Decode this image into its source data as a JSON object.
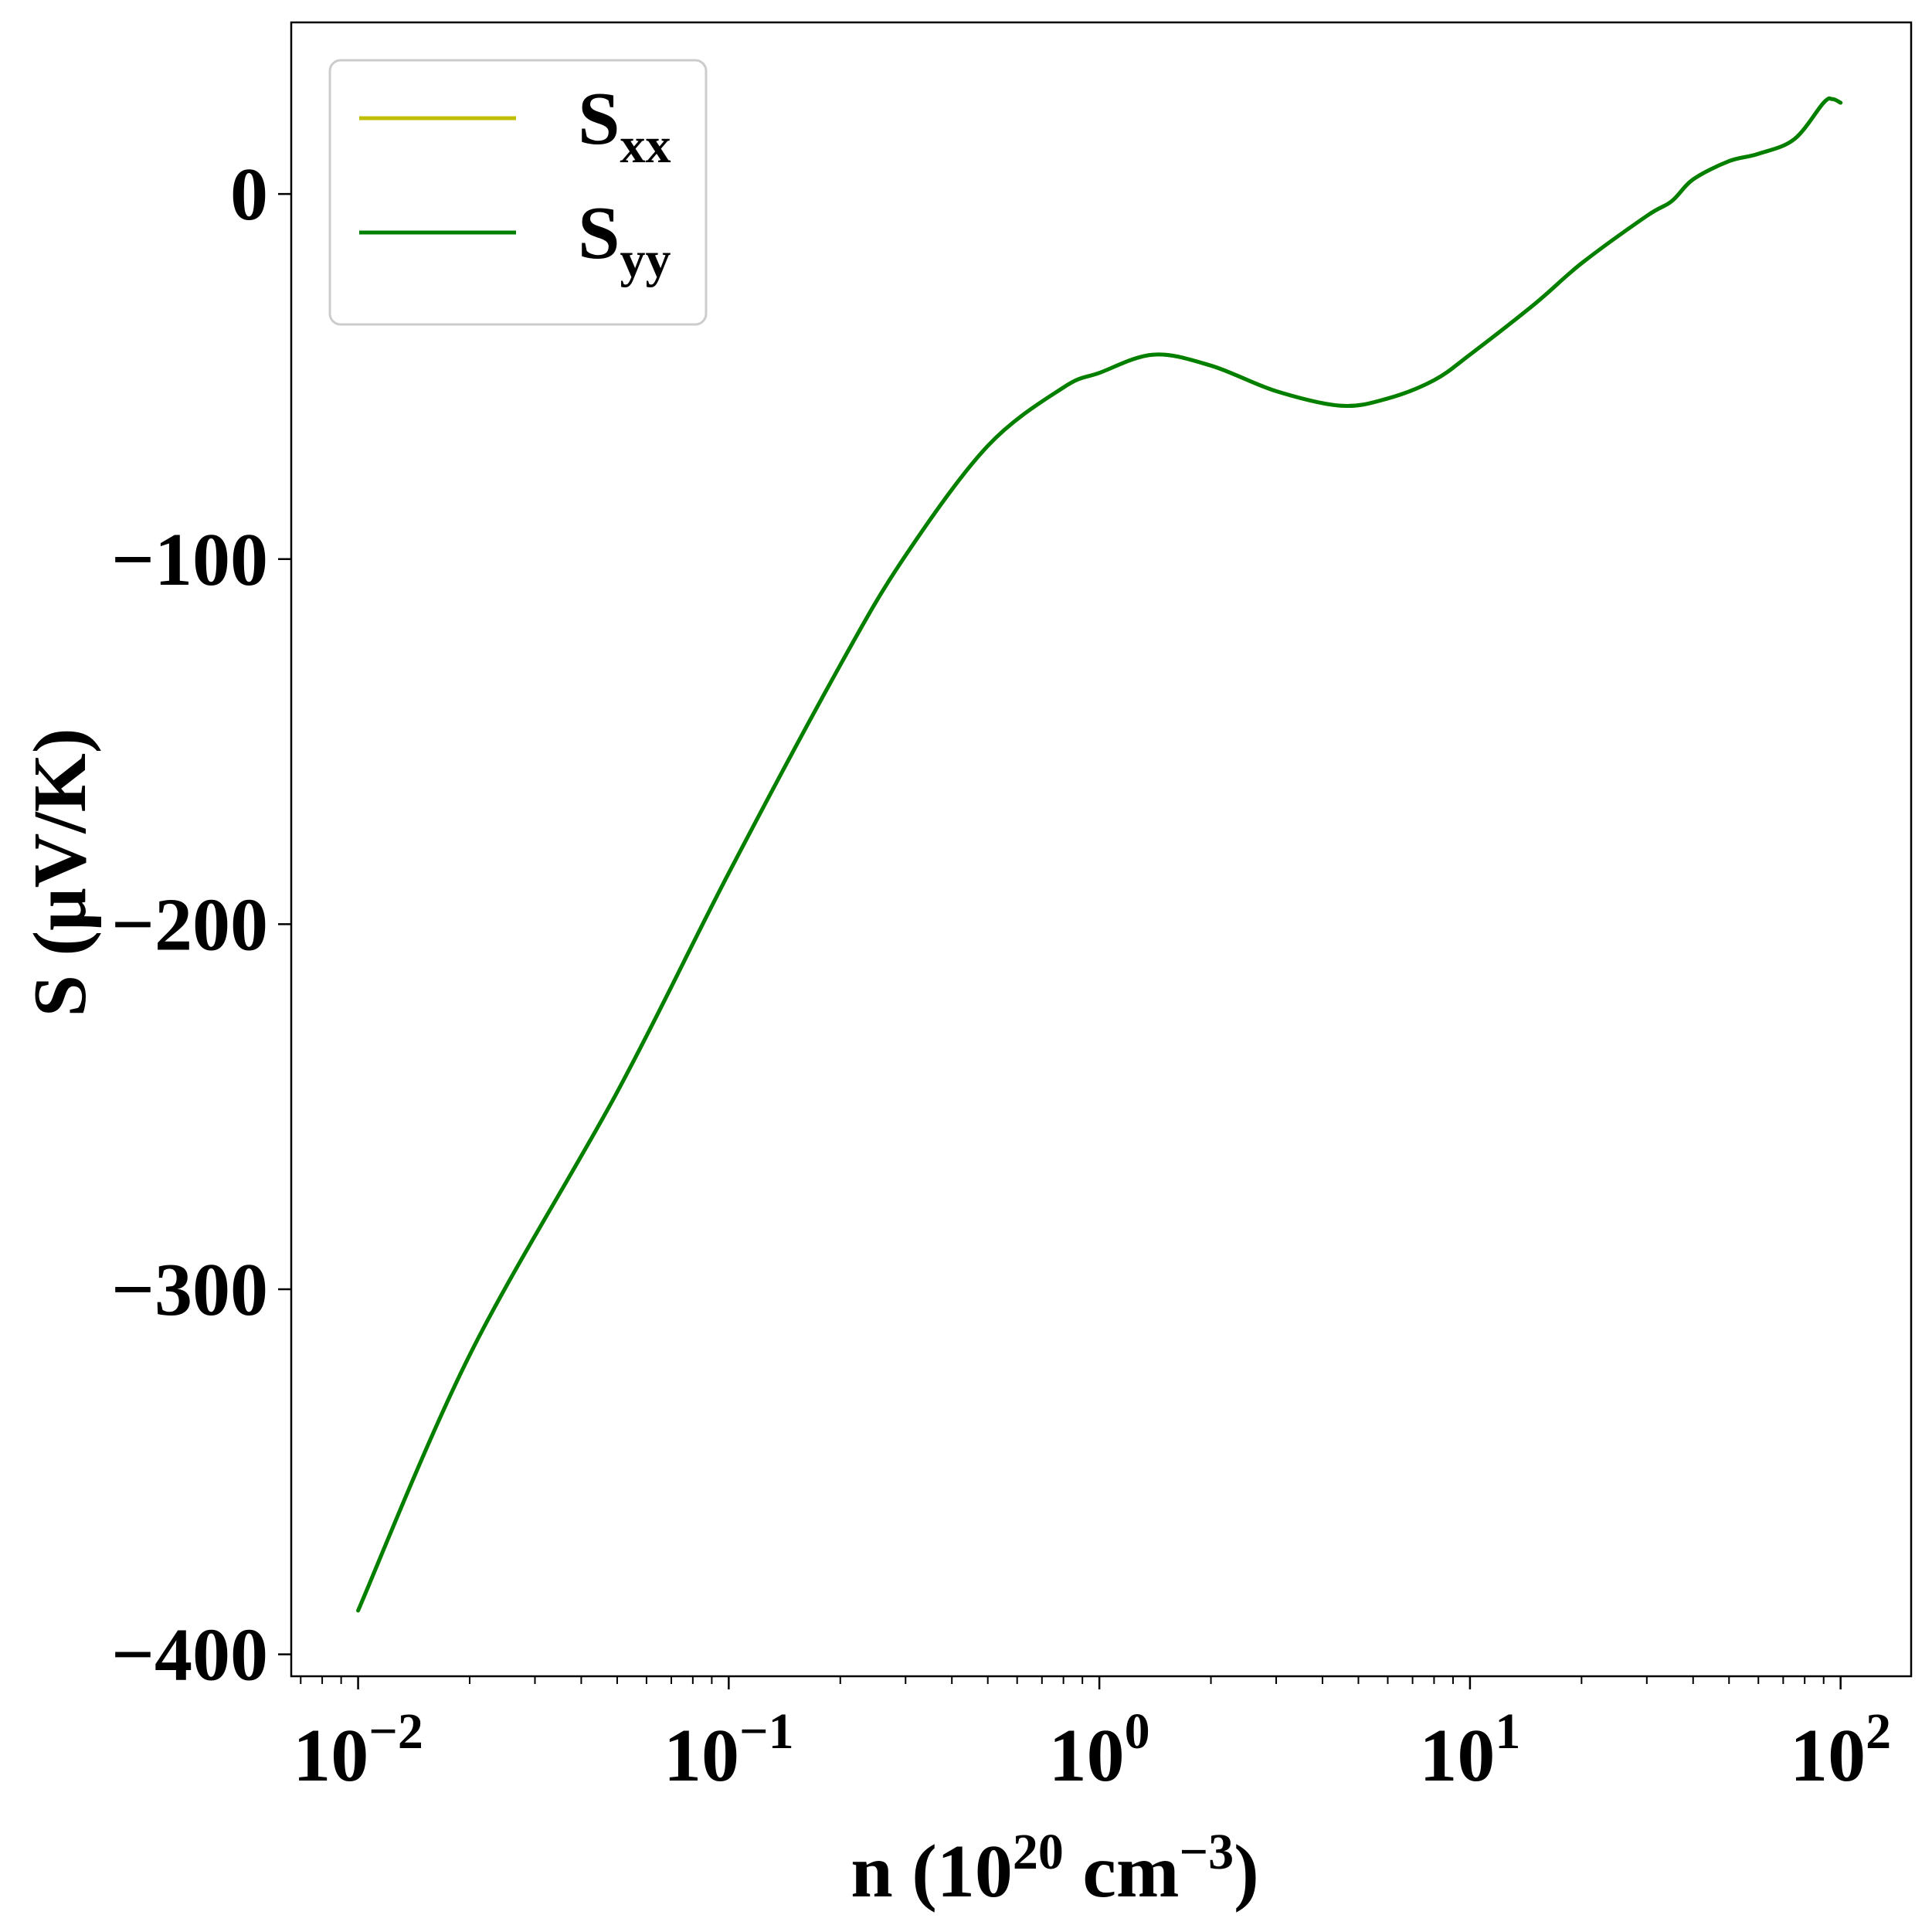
{
  "chart_data": {
    "type": "line",
    "xlabel": {
      "main": "n (10",
      "sup1": "20",
      "mid": " cm",
      "sup2": "−3",
      "end": ")"
    },
    "ylabel": "S (μV/K)",
    "xscale": "log",
    "xlim": [
      0.0066,
      155
    ],
    "ylim": [
      -406,
      47
    ],
    "x_ticks": [
      {
        "value": 0.01,
        "base": "10",
        "exp": "−2"
      },
      {
        "value": 0.1,
        "base": "10",
        "exp": "−1"
      },
      {
        "value": 1,
        "base": "10",
        "exp": "0"
      },
      {
        "value": 10,
        "base": "10",
        "exp": "1"
      },
      {
        "value": 100,
        "base": "10",
        "exp": "2"
      }
    ],
    "y_ticks": [
      {
        "value": 0,
        "label": "0"
      },
      {
        "value": -100,
        "label": "−100"
      },
      {
        "value": -200,
        "label": "−200"
      },
      {
        "value": -300,
        "label": "−300"
      },
      {
        "value": -400,
        "label": "−400"
      }
    ],
    "legend_position": "top-left",
    "grid": false,
    "series": [
      {
        "name": "S",
        "sub": "xx",
        "color": "#bfbf00",
        "x": [
          0.01,
          0.02,
          0.05,
          0.1,
          0.2,
          0.3,
          0.5,
          0.8,
          1.0,
          1.4,
          2.0,
          3.0,
          4.5,
          6.0,
          8.0,
          10,
          15,
          20,
          30,
          35,
          40,
          50,
          60,
          75,
          90,
          95,
          100
        ],
        "y": [
          -388,
          -318,
          -246,
          -186,
          -129,
          -99,
          -69,
          -53,
          -49,
          -44,
          -47,
          -54,
          -58,
          -56,
          -51,
          -44,
          -30,
          -19,
          -6,
          -2,
          4,
          9,
          11,
          15,
          25,
          26,
          25
        ]
      },
      {
        "name": "S",
        "sub": "yy",
        "color": "#007f00",
        "x": [
          0.01,
          0.02,
          0.05,
          0.1,
          0.2,
          0.3,
          0.5,
          0.8,
          1.0,
          1.4,
          2.0,
          3.0,
          4.5,
          6.0,
          8.0,
          10,
          15,
          20,
          30,
          35,
          40,
          50,
          60,
          75,
          90,
          95,
          100
        ],
        "y": [
          -388,
          -318,
          -246,
          -186,
          -129,
          -99,
          -69,
          -53,
          -49,
          -44,
          -47,
          -54,
          -58,
          -56,
          -51,
          -44,
          -30,
          -19,
          -6,
          -2,
          4,
          9,
          11,
          15,
          25,
          26,
          25
        ]
      }
    ]
  }
}
